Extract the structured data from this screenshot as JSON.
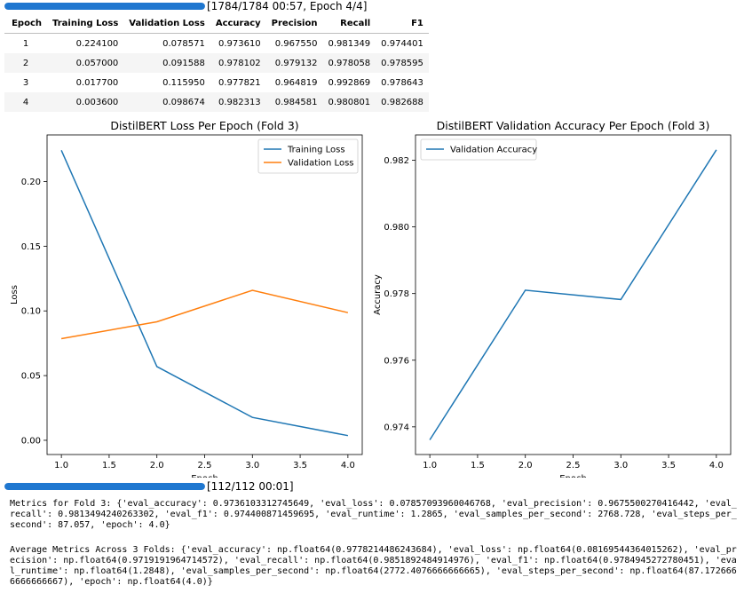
{
  "progress_top": {
    "text": "[1784/1784 00:57, Epoch 4/4]",
    "fraction": 1.0
  },
  "table": {
    "headers": [
      "Epoch",
      "Training Loss",
      "Validation Loss",
      "Accuracy",
      "Precision",
      "Recall",
      "F1"
    ],
    "rows": [
      [
        "1",
        "0.224100",
        "0.078571",
        "0.973610",
        "0.967550",
        "0.981349",
        "0.974401"
      ],
      [
        "2",
        "0.057000",
        "0.091588",
        "0.978102",
        "0.979132",
        "0.978058",
        "0.978595"
      ],
      [
        "3",
        "0.017700",
        "0.115950",
        "0.977821",
        "0.964819",
        "0.992869",
        "0.978643"
      ],
      [
        "4",
        "0.003600",
        "0.098674",
        "0.982313",
        "0.984581",
        "0.980801",
        "0.982688"
      ]
    ]
  },
  "chart_data": [
    {
      "type": "line",
      "title": "DistilBERT Loss Per Epoch (Fold 3)",
      "xlabel": "Epoch",
      "ylabel": "Loss",
      "x": [
        1,
        2,
        3,
        4
      ],
      "xlim": [
        0.85,
        4.15
      ],
      "ylim": [
        -0.011,
        0.236
      ],
      "xticks": [
        "1.0",
        "1.5",
        "2.0",
        "2.5",
        "3.0",
        "3.5",
        "4.0"
      ],
      "yticks": [
        "0.00",
        "0.05",
        "0.10",
        "0.15",
        "0.20"
      ],
      "legend": "upper right",
      "grid": false,
      "series": [
        {
          "name": "Training Loss",
          "color": "#1f77b4",
          "values": [
            0.2241,
            0.057,
            0.0177,
            0.0036
          ]
        },
        {
          "name": "Validation Loss",
          "color": "#ff7f0e",
          "values": [
            0.078571,
            0.091588,
            0.11595,
            0.098674
          ]
        }
      ]
    },
    {
      "type": "line",
      "title": "DistilBERT Validation Accuracy Per Epoch (Fold 3)",
      "xlabel": "Epoch",
      "ylabel": "Accuracy",
      "x": [
        1,
        2,
        3,
        4
      ],
      "xlim": [
        0.85,
        4.15
      ],
      "ylim": [
        0.97317,
        0.98276
      ],
      "xticks": [
        "1.0",
        "1.5",
        "2.0",
        "2.5",
        "3.0",
        "3.5",
        "4.0"
      ],
      "yticks": [
        "0.974",
        "0.976",
        "0.978",
        "0.980",
        "0.982"
      ],
      "legend": "upper left",
      "grid": false,
      "series": [
        {
          "name": "Validation Accuracy",
          "color": "#1f77b4",
          "values": [
            0.97361,
            0.978102,
            0.977821,
            0.982313
          ]
        }
      ]
    }
  ],
  "progress_eval": {
    "text": "[112/112 00:01]",
    "fraction": 1.0
  },
  "logs": {
    "fold_metrics": "Metrics for Fold 3: {'eval_accuracy': 0.9736103312745649, 'eval_loss': 0.07857093960046768, 'eval_precision': 0.9675500270416442, 'eval_recall': 0.9813494240263302, 'eval_f1': 0.974400871459695, 'eval_runtime': 1.2865, 'eval_samples_per_second': 2768.728, 'eval_steps_per_second': 87.057, 'epoch': 4.0}",
    "average_metrics": "Average Metrics Across 3 Folds: {'eval_accuracy': np.float64(0.9778214486243684), 'eval_loss': np.float64(0.08169544364015262), 'eval_precision': np.float64(0.9719191964714572), 'eval_recall': np.float64(0.9851892484914976), 'eval_f1': np.float64(0.9784945272780451), 'eval_runtime': np.float64(1.2848), 'eval_samples_per_second': np.float64(2772.4076666666665), 'eval_steps_per_second': np.float64(87.1726666666666667), 'epoch': np.float64(4.0)}"
  }
}
